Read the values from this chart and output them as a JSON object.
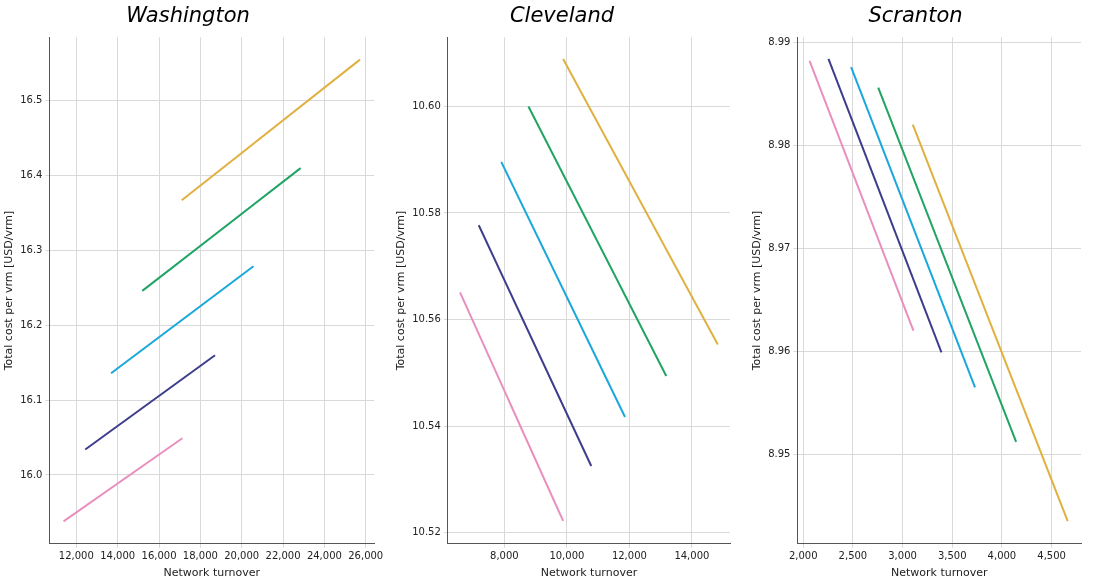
{
  "chart_data": [
    {
      "type": "line",
      "title": "Washington",
      "xlabel": "Network turnover",
      "ylabel": "Total cost per vrm [USD/vrm]",
      "grid": true,
      "legend": false,
      "xlim": [
        10700,
        26400
      ],
      "ylim": [
        15.908,
        16.585
      ],
      "xticks": [
        {
          "value": 12000,
          "label": "12,000"
        },
        {
          "value": 14000,
          "label": "14,000"
        },
        {
          "value": 16000,
          "label": "16,000"
        },
        {
          "value": 18000,
          "label": "18,000"
        },
        {
          "value": 20000,
          "label": "20,000"
        },
        {
          "value": 22000,
          "label": "22,000"
        },
        {
          "value": 24000,
          "label": "24,000"
        },
        {
          "value": 26000,
          "label": "26,000"
        }
      ],
      "yticks": [
        {
          "value": 16.0,
          "label": "16.0"
        },
        16.1,
        16.2,
        16.3,
        16.4,
        16.5
      ],
      "series": [
        {
          "color": "#e98fc0",
          "x": [
            11380,
            17130
          ],
          "values": [
            15.938,
            16.049
          ]
        },
        {
          "color": "#3d3d8c",
          "x": [
            12430,
            18710
          ],
          "values": [
            16.034,
            16.16
          ]
        },
        {
          "color": "#1aa7db",
          "x": [
            13680,
            20570
          ],
          "values": [
            16.136,
            16.279
          ]
        },
        {
          "color": "#1fa463",
          "x": [
            15190,
            22850
          ],
          "values": [
            16.246,
            16.41
          ]
        },
        {
          "color": "#e0b040",
          "x": [
            17100,
            25720
          ],
          "values": [
            16.367,
            16.555
          ]
        }
      ]
    },
    {
      "type": "line",
      "title": "Cleveland",
      "xlabel": "Network turnover",
      "ylabel": "Total cost per vrm [USD/vrm]",
      "grid": true,
      "legend": false,
      "xlim": [
        6190,
        15220
      ],
      "ylim": [
        10.5179,
        10.613
      ],
      "xticks": [
        {
          "value": 8000,
          "label": "8,000"
        },
        {
          "value": 10000,
          "label": "10,000"
        },
        {
          "value": 12000,
          "label": "12,000"
        },
        {
          "value": 14000,
          "label": "14,000"
        }
      ],
      "yticks": [
        {
          "value": 10.52,
          "label": "10.52"
        },
        {
          "value": 10.54,
          "label": "10.54"
        },
        {
          "value": 10.56,
          "label": "10.56"
        },
        {
          "value": 10.58,
          "label": "10.58"
        },
        {
          "value": 10.6,
          "label": "10.60"
        }
      ],
      "series": [
        {
          "color": "#e98fc0",
          "x": [
            6580,
            9880
          ],
          "values": [
            10.5651,
            10.5222
          ]
        },
        {
          "color": "#3d3d8c",
          "x": [
            7180,
            10780
          ],
          "values": [
            10.5777,
            10.5325
          ]
        },
        {
          "color": "#1aa7db",
          "x": [
            7900,
            11860
          ],
          "values": [
            10.5896,
            10.5417
          ]
        },
        {
          "color": "#1fa463",
          "x": [
            8770,
            13180
          ],
          "values": [
            10.6,
            10.5494
          ]
        },
        {
          "color": "#e0b040",
          "x": [
            9880,
            14830
          ],
          "values": [
            10.6089,
            10.5553
          ]
        }
      ]
    },
    {
      "type": "line",
      "title": "Scranton",
      "xlabel": "Network turnover",
      "ylabel": "Total cost per vrm [USD/vrm]",
      "grid": true,
      "legend": false,
      "xlim": [
        1942,
        4796
      ],
      "ylim": [
        8.9413,
        8.9905
      ],
      "xticks": [
        {
          "value": 2000,
          "label": "2,000"
        },
        {
          "value": 2500,
          "label": "2,500"
        },
        {
          "value": 3000,
          "label": "3,000"
        },
        {
          "value": 3500,
          "label": "3,500"
        },
        {
          "value": 4000,
          "label": "4,000"
        },
        {
          "value": 4500,
          "label": "4,500"
        }
      ],
      "yticks": [
        {
          "value": 8.95,
          "label": "8.95"
        },
        {
          "value": 8.96,
          "label": "8.96"
        },
        {
          "value": 8.97,
          "label": "8.97"
        },
        {
          "value": 8.98,
          "label": "8.98"
        },
        {
          "value": 8.99,
          "label": "8.99"
        }
      ],
      "series": [
        {
          "color": "#e98fc0",
          "x": [
            2064,
            3109
          ],
          "values": [
            8.9882,
            8.962
          ]
        },
        {
          "color": "#3d3d8c",
          "x": [
            2254,
            3391
          ],
          "values": [
            8.9884,
            8.9599
          ]
        },
        {
          "color": "#1aa7db",
          "x": [
            2482,
            3729
          ],
          "values": [
            8.9876,
            8.9565
          ]
        },
        {
          "color": "#1fa463",
          "x": [
            2755,
            4143
          ],
          "values": [
            8.9856,
            8.9512
          ]
        },
        {
          "color": "#e0b040",
          "x": [
            3103,
            4662
          ],
          "values": [
            8.982,
            8.9435
          ]
        }
      ]
    }
  ]
}
